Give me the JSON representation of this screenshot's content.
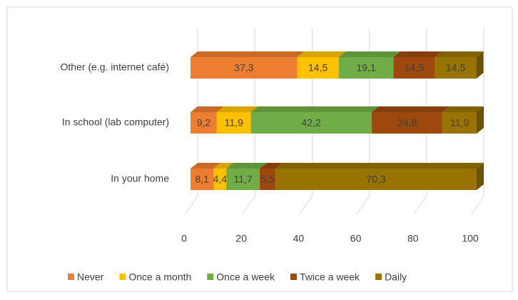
{
  "chart_data": {
    "type": "stacked-bar-horizontal",
    "categories": [
      "Other (e.g. internet café)",
      "In school (lab computer)",
      "In your home"
    ],
    "series": [
      {
        "name": "Never",
        "color": "#ed7d31",
        "values": [
          37.3,
          9.2,
          8.1
        ],
        "value_labels": [
          "37,3",
          "9,2",
          "8,1"
        ]
      },
      {
        "name": "Once a month",
        "color": "#ffc000",
        "values": [
          14.5,
          11.9,
          4.4
        ],
        "value_labels": [
          "14,5",
          "11,9",
          "4,4"
        ]
      },
      {
        "name": "Once a week",
        "color": "#70ad47",
        "values": [
          19.1,
          42.2,
          11.7
        ],
        "value_labels": [
          "19,1",
          "42,2",
          "11,7"
        ]
      },
      {
        "name": "Twice a week",
        "color": "#9e480e",
        "values": [
          14.5,
          24.8,
          5.5
        ],
        "value_labels": [
          "14,5",
          "24,8",
          "5,5"
        ]
      },
      {
        "name": "Daily",
        "color": "#997300",
        "values": [
          14.5,
          11.9,
          70.3
        ],
        "value_labels": [
          "14,5",
          "11,9",
          "70,3"
        ]
      }
    ],
    "xlim": [
      0,
      100
    ],
    "xticks": [
      0,
      20,
      40,
      60,
      80,
      100
    ],
    "grid": true,
    "legend": "bottom"
  }
}
